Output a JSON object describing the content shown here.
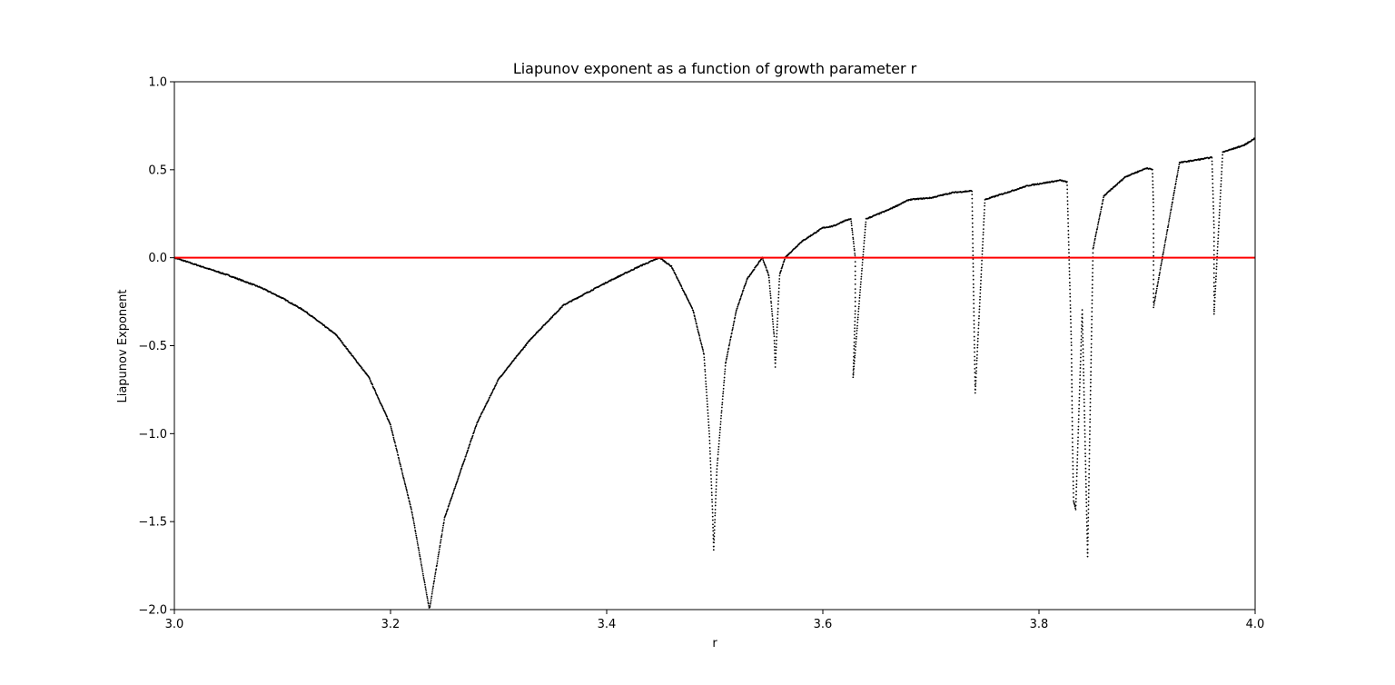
{
  "chart_data": {
    "type": "scatter",
    "title": "Liapunov exponent as a function of growth parameter r",
    "xlabel": "r",
    "ylabel": "Liapunov Exponent",
    "xlim": [
      3.0,
      4.0
    ],
    "ylim": [
      -2.0,
      1.0
    ],
    "x_ticks": [
      3.0,
      3.2,
      3.4,
      3.6,
      3.8,
      4.0
    ],
    "x_tick_labels": [
      "3.0",
      "3.2",
      "3.4",
      "3.6",
      "3.8",
      "4.0"
    ],
    "y_ticks": [
      1.0,
      0.5,
      0.0,
      -0.5,
      -1.0,
      -1.5,
      -2.0
    ],
    "y_tick_labels": [
      "1.0",
      "0.5",
      "0.0",
      "−0.5",
      "−1.0",
      "−1.5",
      "−2.0"
    ],
    "grid": false,
    "series": [
      {
        "marker_color": "#000000",
        "points": [
          [
            3.0,
            0.0
          ],
          [
            3.02,
            -0.04
          ],
          [
            3.05,
            -0.1
          ],
          [
            3.08,
            -0.17
          ],
          [
            3.1,
            -0.23
          ],
          [
            3.12,
            -0.3
          ],
          [
            3.15,
            -0.44
          ],
          [
            3.18,
            -0.68
          ],
          [
            3.2,
            -0.95
          ],
          [
            3.22,
            -1.45
          ],
          [
            3.236,
            -2.0
          ],
          [
            3.25,
            -1.48
          ],
          [
            3.28,
            -0.94
          ],
          [
            3.3,
            -0.69
          ],
          [
            3.33,
            -0.46
          ],
          [
            3.36,
            -0.27
          ],
          [
            3.4,
            -0.14
          ],
          [
            3.43,
            -0.05
          ],
          [
            3.449,
            0.0
          ],
          [
            3.46,
            -0.05
          ],
          [
            3.48,
            -0.3
          ],
          [
            3.49,
            -0.55
          ],
          [
            3.495,
            -1.0
          ],
          [
            3.498,
            -1.45
          ],
          [
            3.499,
            -1.66
          ],
          [
            3.502,
            -1.2
          ],
          [
            3.51,
            -0.6
          ],
          [
            3.52,
            -0.3
          ],
          [
            3.53,
            -0.12
          ],
          [
            3.544,
            0.0
          ],
          [
            3.55,
            -0.1
          ],
          [
            3.555,
            -0.45
          ],
          [
            3.556,
            -0.62
          ],
          [
            3.56,
            -0.1
          ],
          [
            3.565,
            0.0
          ],
          [
            3.57,
            0.03
          ],
          [
            3.58,
            0.09
          ],
          [
            3.6,
            0.17
          ],
          [
            3.61,
            0.18
          ],
          [
            3.62,
            0.21
          ],
          [
            3.626,
            0.22
          ],
          [
            3.63,
            0.0
          ],
          [
            3.63,
            -0.3
          ],
          [
            3.628,
            -0.68
          ],
          [
            3.64,
            0.22
          ],
          [
            3.66,
            0.27
          ],
          [
            3.68,
            0.33
          ],
          [
            3.7,
            0.34
          ],
          [
            3.72,
            0.37
          ],
          [
            3.738,
            0.38
          ],
          [
            3.74,
            -0.4
          ],
          [
            3.741,
            -0.77
          ],
          [
            3.75,
            0.33
          ],
          [
            3.77,
            0.37
          ],
          [
            3.79,
            0.41
          ],
          [
            3.82,
            0.44
          ],
          [
            3.826,
            0.43
          ],
          [
            3.83,
            -0.5
          ],
          [
            3.831,
            -1.05
          ],
          [
            3.832,
            -1.38
          ],
          [
            3.834,
            -1.43
          ],
          [
            3.84,
            -0.3
          ],
          [
            3.845,
            -1.7
          ],
          [
            3.85,
            0.05
          ],
          [
            3.86,
            0.35
          ],
          [
            3.88,
            0.46
          ],
          [
            3.9,
            0.51
          ],
          [
            3.905,
            0.5
          ],
          [
            3.906,
            0.27
          ],
          [
            3.906,
            -0.28
          ],
          [
            3.93,
            0.54
          ],
          [
            3.96,
            0.57
          ],
          [
            3.962,
            0.17
          ],
          [
            3.962,
            -0.32
          ],
          [
            3.97,
            0.6
          ],
          [
            3.99,
            0.64
          ],
          [
            4.0,
            0.68
          ]
        ]
      }
    ],
    "reference_line": {
      "y": 0.0,
      "color": "#ff0000"
    }
  }
}
